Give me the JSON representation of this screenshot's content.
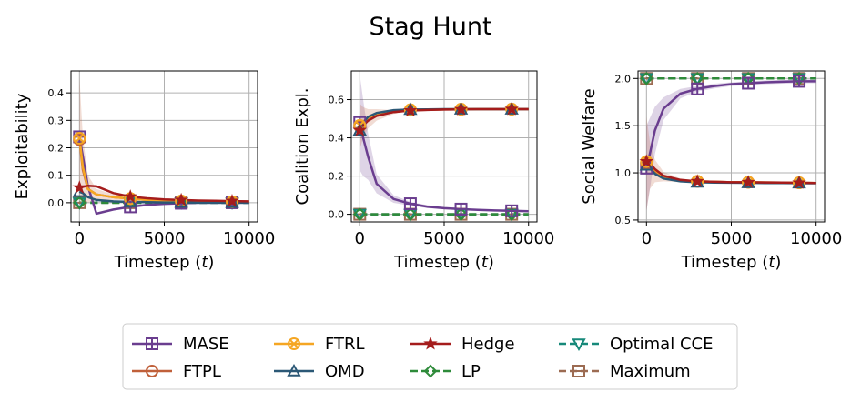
{
  "title": "Stag Hunt",
  "colors": {
    "MASE": "#6a3d8f",
    "FTPL": "#c0603a",
    "FTRL": "#f5a623",
    "OMD": "#2b5876",
    "Hedge": "#a51c1c",
    "LP": "#2e8b3a",
    "Optimal CCE": "#17897a",
    "Maximum": "#9c6b52"
  },
  "legend": {
    "entries": [
      {
        "name": "MASE",
        "marker": "plus-square",
        "line": "solid"
      },
      {
        "name": "FTPL",
        "marker": "circle",
        "line": "solid"
      },
      {
        "name": "FTRL",
        "marker": "x-circle",
        "line": "solid"
      },
      {
        "name": "OMD",
        "marker": "triangle-up",
        "line": "solid"
      },
      {
        "name": "Hedge",
        "marker": "star",
        "line": "solid"
      },
      {
        "name": "LP",
        "marker": "diamond",
        "line": "dashed"
      },
      {
        "name": "Optimal CCE",
        "marker": "triangle-down",
        "line": "dashed"
      },
      {
        "name": "Maximum",
        "marker": "minus-square",
        "line": "dashed"
      }
    ],
    "placement": "bottom-center"
  },
  "chart_data": [
    {
      "type": "line",
      "xlabel": "Timestep ($t$)",
      "xlabel_text": "Timestep (",
      "xlabel_var": "t",
      "ylabel": "Exploitability",
      "xlim": [
        -500,
        10500
      ],
      "ylim": [
        -0.07,
        0.48
      ],
      "xticks": [
        0,
        5000,
        10000
      ],
      "yticks": [
        0.0,
        0.1,
        0.2,
        0.3,
        0.4
      ],
      "yticklabels": [
        "0.0",
        "0.1",
        "0.2",
        "0.3",
        "0.4"
      ],
      "grid": true,
      "series": [
        {
          "name": "MASE",
          "x": [
            0,
            200,
            500,
            1000,
            2000,
            3000,
            4000,
            5000,
            6000,
            7000,
            8000,
            9000,
            10000
          ],
          "y": [
            0.24,
            0.17,
            0.06,
            -0.04,
            -0.025,
            -0.015,
            -0.008,
            -0.004,
            -0.002,
            0.0,
            0.0,
            0.0,
            0.0
          ],
          "band": [
            0.0,
            0.0,
            0.0,
            0.0,
            0.0,
            0.0,
            0.0,
            0.0,
            0.0,
            0.0,
            0.0,
            0.0,
            0.0
          ]
        },
        {
          "name": "FTPL",
          "x": [
            0,
            200,
            500,
            1000,
            2000,
            3000,
            4000,
            5000,
            6000,
            7000,
            8000,
            9000,
            10000
          ],
          "y": [
            0.23,
            0.12,
            0.05,
            0.03,
            0.02,
            0.015,
            0.01,
            0.008,
            0.006,
            0.005,
            0.004,
            0.003,
            0.003
          ],
          "band": [
            0.23,
            0.12,
            0.05,
            0.02,
            0.01,
            0.006,
            0.004,
            0.003,
            0.003,
            0.002,
            0.002,
            0.002,
            0.002
          ]
        },
        {
          "name": "FTRL",
          "x": [
            0,
            200,
            500,
            1000,
            2000,
            3000,
            4000,
            5000,
            6000,
            7000,
            8000,
            9000,
            10000
          ],
          "y": [
            0.235,
            0.13,
            0.05,
            0.03,
            0.02,
            0.015,
            0.01,
            0.008,
            0.006,
            0.005,
            0.004,
            0.003,
            0.003
          ],
          "band": [
            0.0,
            0.0,
            0.0,
            0.0,
            0.0,
            0.0,
            0.0,
            0.0,
            0.0,
            0.0,
            0.0,
            0.0,
            0.0
          ]
        },
        {
          "name": "OMD",
          "x": [
            0,
            200,
            500,
            1000,
            2000,
            3000,
            4000,
            5000,
            6000,
            7000,
            8000,
            9000,
            10000
          ],
          "y": [
            0.04,
            0.035,
            0.02,
            0.01,
            0.005,
            0.003,
            0.002,
            0.001,
            0.001,
            0.0,
            0.0,
            0.0,
            0.0
          ],
          "band": [
            0.0,
            0.0,
            0.0,
            0.0,
            0.0,
            0.0,
            0.0,
            0.0,
            0.0,
            0.0,
            0.0,
            0.0,
            0.0
          ]
        },
        {
          "name": "Hedge",
          "x": [
            0,
            200,
            500,
            1000,
            2000,
            3000,
            4000,
            5000,
            6000,
            7000,
            8000,
            9000,
            10000
          ],
          "y": [
            0.055,
            0.058,
            0.062,
            0.06,
            0.035,
            0.022,
            0.016,
            0.012,
            0.01,
            0.008,
            0.007,
            0.006,
            0.005
          ],
          "band": [
            0.0,
            0.0,
            0.0,
            0.0,
            0.0,
            0.0,
            0.0,
            0.0,
            0.0,
            0.0,
            0.0,
            0.0,
            0.0
          ]
        },
        {
          "name": "LP",
          "x": [
            0,
            10000
          ],
          "y": [
            0.0,
            0.0
          ],
          "band": [
            0.0,
            0.0
          ]
        },
        {
          "name": "Optimal CCE",
          "x": [
            0,
            10000
          ],
          "y": [
            0.0,
            0.0
          ],
          "band": [
            0.0,
            0.0
          ]
        },
        {
          "name": "Maximum",
          "x": [
            0,
            10000
          ],
          "y": [
            0.0,
            0.0
          ],
          "band": [
            0.0,
            0.0
          ]
        }
      ]
    },
    {
      "type": "line",
      "xlabel": "Timestep ($t$)",
      "xlabel_text": "Timestep (",
      "xlabel_var": "t",
      "ylabel": "Coalition Expl.",
      "xlim": [
        -500,
        10500
      ],
      "ylim": [
        -0.04,
        0.75
      ],
      "xticks": [
        0,
        5000,
        10000
      ],
      "yticks": [
        0.0,
        0.2,
        0.4,
        0.6
      ],
      "yticklabels": [
        "0.0",
        "0.2",
        "0.4",
        "0.6"
      ],
      "grid": true,
      "series": [
        {
          "name": "MASE",
          "x": [
            0,
            200,
            500,
            1000,
            2000,
            3000,
            4000,
            5000,
            6000,
            7000,
            8000,
            9000,
            10000
          ],
          "y": [
            0.48,
            0.4,
            0.3,
            0.16,
            0.08,
            0.055,
            0.04,
            0.032,
            0.027,
            0.023,
            0.02,
            0.018,
            0.016
          ],
          "band": [
            0.25,
            0.2,
            0.12,
            0.05,
            0.02,
            0.01,
            0.008,
            0.006,
            0.005,
            0.004,
            0.004,
            0.003,
            0.003
          ]
        },
        {
          "name": "FTPL",
          "x": [
            0,
            200,
            500,
            1000,
            2000,
            3000,
            4000,
            5000,
            6000,
            7000,
            8000,
            9000,
            10000
          ],
          "y": [
            0.46,
            0.48,
            0.5,
            0.52,
            0.535,
            0.545,
            0.547,
            0.548,
            0.549,
            0.55,
            0.55,
            0.55,
            0.55
          ],
          "band": [
            0.12,
            0.08,
            0.05,
            0.03,
            0.01,
            0.005,
            0.003,
            0.002,
            0.002,
            0.001,
            0.001,
            0.001,
            0.001
          ]
        },
        {
          "name": "FTRL",
          "x": [
            0,
            200,
            500,
            1000,
            2000,
            3000,
            4000,
            5000,
            6000,
            7000,
            8000,
            9000,
            10000
          ],
          "y": [
            0.465,
            0.485,
            0.505,
            0.525,
            0.54,
            0.547,
            0.548,
            0.549,
            0.55,
            0.55,
            0.55,
            0.55,
            0.55
          ],
          "band": [
            0.0,
            0.0,
            0.0,
            0.0,
            0.0,
            0.0,
            0.0,
            0.0,
            0.0,
            0.0,
            0.0,
            0.0,
            0.0
          ]
        },
        {
          "name": "OMD",
          "x": [
            0,
            200,
            500,
            1000,
            2000,
            3000,
            4000,
            5000,
            6000,
            7000,
            8000,
            9000,
            10000
          ],
          "y": [
            0.44,
            0.48,
            0.51,
            0.53,
            0.545,
            0.548,
            0.549,
            0.55,
            0.55,
            0.55,
            0.55,
            0.55,
            0.55
          ],
          "band": [
            0.0,
            0.0,
            0.0,
            0.0,
            0.0,
            0.0,
            0.0,
            0.0,
            0.0,
            0.0,
            0.0,
            0.0,
            0.0
          ]
        },
        {
          "name": "Hedge",
          "x": [
            0,
            200,
            500,
            1000,
            2000,
            3000,
            4000,
            5000,
            6000,
            7000,
            8000,
            9000,
            10000
          ],
          "y": [
            0.44,
            0.465,
            0.49,
            0.515,
            0.535,
            0.543,
            0.546,
            0.548,
            0.549,
            0.55,
            0.55,
            0.55,
            0.55
          ],
          "band": [
            0.0,
            0.0,
            0.0,
            0.0,
            0.0,
            0.0,
            0.0,
            0.0,
            0.0,
            0.0,
            0.0,
            0.0,
            0.0
          ]
        },
        {
          "name": "LP",
          "x": [
            0,
            10000
          ],
          "y": [
            0.0,
            0.0
          ],
          "band": [
            0.0,
            0.0
          ]
        },
        {
          "name": "Optimal CCE",
          "x": [
            0,
            10000
          ],
          "y": [
            0.0,
            0.0
          ],
          "band": [
            0.0,
            0.0
          ]
        },
        {
          "name": "Maximum",
          "x": [
            0,
            10000
          ],
          "y": [
            0.0,
            0.0
          ],
          "band": [
            0.0,
            0.0
          ]
        }
      ]
    },
    {
      "type": "line",
      "xlabel": "Timestep ($t$)",
      "xlabel_text": "Timestep (",
      "xlabel_var": "t",
      "ylabel": "Social Welfare",
      "xlim": [
        -500,
        10500
      ],
      "ylim": [
        0.48,
        2.08
      ],
      "xticks": [
        0,
        5000,
        10000
      ],
      "yticks": [
        0.5,
        1.0,
        1.5,
        2.0
      ],
      "yticklabels": [
        "0.5",
        "1.0",
        "1.5",
        "2.0"
      ],
      "grid": true,
      "series": [
        {
          "name": "MASE",
          "x": [
            0,
            200,
            500,
            1000,
            2000,
            3000,
            4000,
            5000,
            6000,
            7000,
            8000,
            9000,
            10000
          ],
          "y": [
            1.05,
            1.2,
            1.45,
            1.68,
            1.84,
            1.89,
            1.92,
            1.94,
            1.95,
            1.96,
            1.965,
            1.97,
            1.97
          ],
          "band": [
            0.45,
            0.38,
            0.25,
            0.12,
            0.05,
            0.03,
            0.025,
            0.02,
            0.02,
            0.02,
            0.02,
            0.02,
            0.02
          ]
        },
        {
          "name": "FTPL",
          "x": [
            0,
            200,
            500,
            1000,
            2000,
            3000,
            4000,
            5000,
            6000,
            7000,
            8000,
            9000,
            10000
          ],
          "y": [
            1.1,
            1.08,
            1.02,
            0.96,
            0.92,
            0.91,
            0.905,
            0.9,
            0.9,
            0.898,
            0.896,
            0.894,
            0.893
          ],
          "band": [
            0.5,
            0.25,
            0.12,
            0.05,
            0.02,
            0.01,
            0.008,
            0.006,
            0.005,
            0.004,
            0.004,
            0.003,
            0.003
          ]
        },
        {
          "name": "FTRL",
          "x": [
            0,
            200,
            500,
            1000,
            2000,
            3000,
            4000,
            5000,
            6000,
            7000,
            8000,
            9000,
            10000
          ],
          "y": [
            1.12,
            1.1,
            1.03,
            0.96,
            0.92,
            0.91,
            0.905,
            0.9,
            0.9,
            0.898,
            0.896,
            0.894,
            0.893
          ],
          "band": [
            0.0,
            0.0,
            0.0,
            0.0,
            0.0,
            0.0,
            0.0,
            0.0,
            0.0,
            0.0,
            0.0,
            0.0,
            0.0
          ]
        },
        {
          "name": "OMD",
          "x": [
            0,
            200,
            500,
            1000,
            2000,
            3000,
            4000,
            5000,
            6000,
            7000,
            8000,
            9000,
            10000
          ],
          "y": [
            1.08,
            1.05,
            0.99,
            0.94,
            0.91,
            0.9,
            0.897,
            0.895,
            0.894,
            0.893,
            0.892,
            0.891,
            0.89
          ],
          "band": [
            0.0,
            0.0,
            0.0,
            0.0,
            0.0,
            0.0,
            0.0,
            0.0,
            0.0,
            0.0,
            0.0,
            0.0,
            0.0
          ]
        },
        {
          "name": "Hedge",
          "x": [
            0,
            200,
            500,
            1000,
            2000,
            3000,
            4000,
            5000,
            6000,
            7000,
            8000,
            9000,
            10000
          ],
          "y": [
            1.12,
            1.1,
            1.04,
            0.97,
            0.925,
            0.91,
            0.905,
            0.9,
            0.9,
            0.898,
            0.896,
            0.894,
            0.893
          ],
          "band": [
            0.0,
            0.0,
            0.0,
            0.0,
            0.0,
            0.0,
            0.0,
            0.0,
            0.0,
            0.0,
            0.0,
            0.0,
            0.0
          ]
        },
        {
          "name": "LP",
          "x": [
            0,
            10000
          ],
          "y": [
            2.0,
            2.0
          ],
          "band": [
            0.0,
            0.0
          ]
        },
        {
          "name": "Optimal CCE",
          "x": [
            0,
            10000
          ],
          "y": [
            2.0,
            2.0
          ],
          "band": [
            0.0,
            0.0
          ]
        },
        {
          "name": "Maximum",
          "x": [
            0,
            10000
          ],
          "y": [
            2.0,
            2.0
          ],
          "band": [
            0.0,
            0.0
          ]
        }
      ]
    }
  ]
}
